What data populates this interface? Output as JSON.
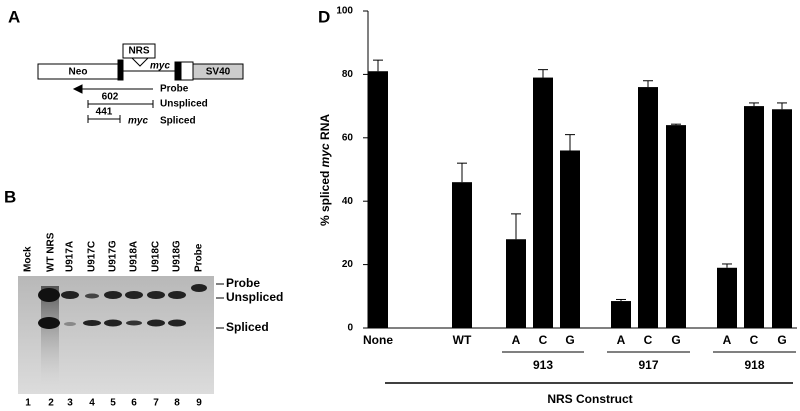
{
  "panel_a": {
    "letter": "A",
    "nrs": "NRS",
    "myc": "myc",
    "neo": "Neo",
    "sv40": "SV40",
    "probe": "Probe",
    "len_unspliced": "602",
    "unspliced": "Unspliced",
    "len_spliced": "441",
    "myc_spliced": "myc",
    "spliced": "Spliced"
  },
  "panel_b": {
    "letter": "B",
    "lane_labels": [
      "Mock",
      "WT NRS",
      "U917A",
      "U917C",
      "U917G",
      "U918A",
      "U918C",
      "U918G",
      "Probe"
    ],
    "lane_numbers": [
      "1",
      "2",
      "3",
      "4",
      "5",
      "6",
      "7",
      "8",
      "9"
    ],
    "band_labels": [
      "Probe",
      "Unspliced",
      "Spliced"
    ]
  },
  "chart_data": {
    "type": "bar",
    "letter": "D",
    "ylabel": [
      "% spliced",
      "myc",
      "RNA"
    ],
    "categories": [
      "None",
      "WT",
      "A",
      "C",
      "G",
      "A",
      "C",
      "G",
      "A",
      "C",
      "G"
    ],
    "values": [
      81,
      46,
      28,
      79,
      56,
      8.5,
      76,
      64,
      19,
      70,
      69
    ],
    "errors": [
      3.5,
      6,
      8,
      2.5,
      5,
      0.5,
      2,
      0.3,
      1.2,
      1,
      2
    ],
    "groups": [
      "913",
      "917",
      "918"
    ],
    "xlabel": "NRS Construct",
    "color": "#000000",
    "ylim": [
      0,
      100
    ],
    "yticks": [
      0,
      20,
      40,
      60,
      80,
      100
    ]
  }
}
